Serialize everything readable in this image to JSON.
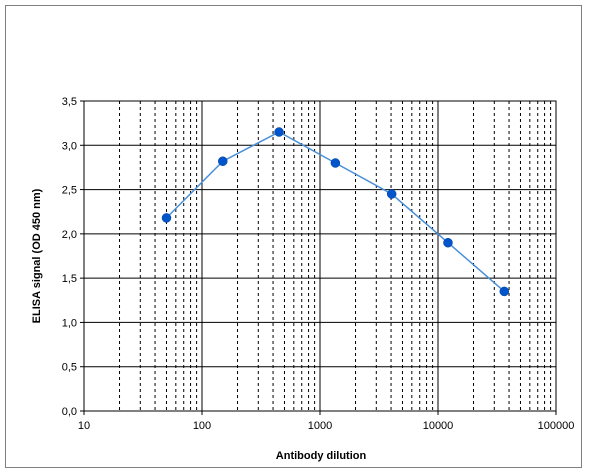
{
  "chart_data": {
    "type": "line",
    "title": "",
    "xlabel": "Antibody dilution",
    "ylabel": "ELISA signal (OD 450 nm)",
    "x_scale": "log",
    "xlim": [
      10,
      100000
    ],
    "ylim": [
      0,
      3.5
    ],
    "x_ticks": [
      "10",
      "100",
      "1000",
      "10000",
      "100000"
    ],
    "y_ticks": [
      "0,0",
      "0,5",
      "1,0",
      "1,5",
      "2,0",
      "2,5",
      "3,0",
      "3,5"
    ],
    "grid": true,
    "legend": "none",
    "series": [
      {
        "x": [
          50,
          150,
          450,
          1350,
          4050,
          12150,
          36450
        ],
        "values": [
          2.18,
          2.82,
          3.15,
          2.8,
          2.45,
          1.9,
          1.35
        ],
        "color": "#0055cc",
        "line_color": "#4a90d9"
      }
    ]
  }
}
